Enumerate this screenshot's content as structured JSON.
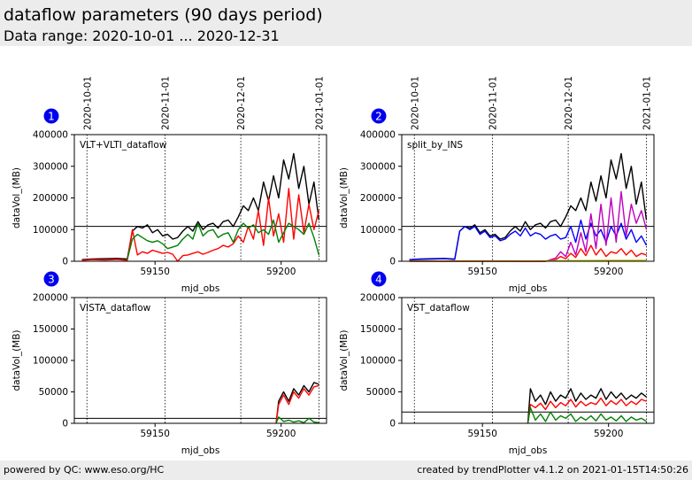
{
  "header": {
    "title": "dataflow parameters (90 days period)",
    "subtitle": "Data range: 2020-10-01 ... 2020-12-31"
  },
  "footer": {
    "left": "powered by QC: www.eso.org/HC",
    "right": "created by trendPlotter v4.1.2 on 2021-01-15T14:50:26"
  },
  "colors": {
    "black": "#000000",
    "red": "#ff0000",
    "green": "#008000",
    "blue": "#0000ff",
    "magenta": "#bf00bf",
    "yellow": "#c0c000",
    "badge": "#0000ee"
  },
  "chart_data": [
    {
      "type": "line",
      "panel": "1",
      "label": "VLT+VLTI_dataflow",
      "xlabel": "mjd_obs",
      "ylabel": "dataVol_(MB)",
      "xlim": [
        59118,
        59218
      ],
      "ylim": [
        0,
        400000
      ],
      "xticks": [
        59150,
        59200
      ],
      "yticks": [
        0,
        100000,
        200000,
        300000,
        400000
      ],
      "date_markers": [
        {
          "label": "2020-10-01",
          "x": 59123
        },
        {
          "label": "2020-11-01",
          "x": 59154
        },
        {
          "label": "2020-12-01",
          "x": 59184
        },
        {
          "label": "2021-01-01",
          "x": 59215
        }
      ],
      "reference_line": 110000,
      "series": [
        {
          "color": "black",
          "x": [
            59121,
            59125,
            59130,
            59135,
            59139,
            59141,
            59143,
            59145,
            59147,
            59149,
            59151,
            59153,
            59155,
            59157,
            59159,
            59161,
            59163,
            59165,
            59167,
            59169,
            59171,
            59173,
            59175,
            59177,
            59179,
            59181,
            59183,
            59185,
            59187,
            59189,
            59191,
            59193,
            59195,
            59197,
            59199,
            59201,
            59203,
            59205,
            59207,
            59209,
            59211,
            59213,
            59215
          ],
          "y": [
            5000,
            7000,
            8000,
            9000,
            7000,
            95000,
            110000,
            105000,
            115000,
            90000,
            100000,
            80000,
            85000,
            70000,
            75000,
            95000,
            110000,
            95000,
            125000,
            100000,
            115000,
            120000,
            105000,
            125000,
            130000,
            110000,
            140000,
            175000,
            160000,
            200000,
            160000,
            250000,
            190000,
            270000,
            200000,
            320000,
            260000,
            340000,
            230000,
            300000,
            180000,
            250000,
            130000
          ]
        },
        {
          "color": "red",
          "x": [
            59121,
            59125,
            59130,
            59135,
            59139,
            59141,
            59143,
            59145,
            59147,
            59149,
            59151,
            59153,
            59155,
            59157,
            59159,
            59161,
            59163,
            59165,
            59167,
            59169,
            59171,
            59173,
            59175,
            59177,
            59179,
            59181,
            59183,
            59185,
            59187,
            59189,
            59191,
            59193,
            59195,
            59197,
            59199,
            59201,
            59203,
            59205,
            59207,
            59209,
            59211,
            59213,
            59215
          ],
          "y": [
            3000,
            5000,
            4000,
            6000,
            3000,
            100000,
            20000,
            30000,
            25000,
            35000,
            30000,
            25000,
            28000,
            22000,
            0,
            18000,
            20000,
            25000,
            30000,
            22000,
            28000,
            35000,
            40000,
            50000,
            45000,
            55000,
            80000,
            60000,
            110000,
            70000,
            160000,
            50000,
            200000,
            80000,
            150000,
            60000,
            230000,
            70000,
            210000,
            90000,
            180000,
            100000,
            160000
          ]
        },
        {
          "color": "green",
          "x": [
            59139,
            59141,
            59143,
            59145,
            59147,
            59149,
            59151,
            59153,
            59155,
            59157,
            59159,
            59161,
            59163,
            59165,
            59167,
            59169,
            59171,
            59173,
            59175,
            59177,
            59179,
            59181,
            59183,
            59185,
            59187,
            59189,
            59191,
            59193,
            59195,
            59197,
            59199,
            59201,
            59203,
            59205,
            59207,
            59209,
            59211,
            59213,
            59215
          ],
          "y": [
            5000,
            70000,
            85000,
            75000,
            65000,
            60000,
            65000,
            55000,
            40000,
            45000,
            50000,
            70000,
            85000,
            70000,
            120000,
            80000,
            95000,
            100000,
            75000,
            85000,
            90000,
            60000,
            100000,
            120000,
            105000,
            115000,
            90000,
            100000,
            85000,
            130000,
            60000,
            90000,
            120000,
            110000,
            100000,
            85000,
            120000,
            75000,
            20000
          ]
        }
      ]
    },
    {
      "type": "line",
      "panel": "2",
      "label": "split_by_INS",
      "xlabel": "mjd_obs",
      "ylabel": "dataVol_(MB)",
      "xlim": [
        59118,
        59218
      ],
      "ylim": [
        0,
        400000
      ],
      "xticks": [
        59150,
        59200
      ],
      "yticks": [
        0,
        100000,
        200000,
        300000,
        400000
      ],
      "date_markers": [
        {
          "label": "2020-10-01",
          "x": 59123
        },
        {
          "label": "2020-11-01",
          "x": 59154
        },
        {
          "label": "2020-12-01",
          "x": 59184
        },
        {
          "label": "2021-01-01",
          "x": 59215
        }
      ],
      "reference_line": 110000,
      "series": [
        {
          "color": "black",
          "x": [
            59121,
            59125,
            59130,
            59135,
            59139,
            59141,
            59143,
            59145,
            59147,
            59149,
            59151,
            59153,
            59155,
            59157,
            59159,
            59161,
            59163,
            59165,
            59167,
            59169,
            59171,
            59173,
            59175,
            59177,
            59179,
            59181,
            59183,
            59185,
            59187,
            59189,
            59191,
            59193,
            59195,
            59197,
            59199,
            59201,
            59203,
            59205,
            59207,
            59209,
            59211,
            59213,
            59215
          ],
          "y": [
            5000,
            7000,
            8000,
            9000,
            7000,
            95000,
            110000,
            105000,
            115000,
            90000,
            100000,
            80000,
            85000,
            70000,
            75000,
            95000,
            110000,
            95000,
            125000,
            100000,
            115000,
            120000,
            105000,
            125000,
            130000,
            110000,
            140000,
            175000,
            160000,
            200000,
            160000,
            250000,
            190000,
            270000,
            200000,
            320000,
            260000,
            340000,
            230000,
            300000,
            180000,
            250000,
            130000
          ]
        },
        {
          "color": "blue",
          "x": [
            59121,
            59125,
            59130,
            59135,
            59139,
            59141,
            59143,
            59145,
            59147,
            59149,
            59151,
            59153,
            59155,
            59157,
            59159,
            59161,
            59163,
            59165,
            59167,
            59169,
            59171,
            59173,
            59175,
            59177,
            59179,
            59181,
            59183,
            59185,
            59187,
            59189,
            59191,
            59193,
            59195,
            59197,
            59199,
            59201,
            59203,
            59205,
            59207,
            59209,
            59211,
            59213,
            59215
          ],
          "y": [
            5000,
            6000,
            7000,
            8000,
            6000,
            95000,
            110000,
            100000,
            110000,
            85000,
            95000,
            75000,
            80000,
            65000,
            70000,
            85000,
            95000,
            80000,
            105000,
            80000,
            90000,
            85000,
            70000,
            80000,
            85000,
            70000,
            75000,
            110000,
            60000,
            130000,
            70000,
            120000,
            80000,
            100000,
            60000,
            110000,
            80000,
            120000,
            70000,
            100000,
            60000,
            80000,
            50000
          ]
        },
        {
          "color": "magenta",
          "x": [
            59121,
            59140,
            59160,
            59175,
            59179,
            59181,
            59183,
            59185,
            59187,
            59189,
            59191,
            59193,
            59195,
            59197,
            59199,
            59201,
            59203,
            59205,
            59207,
            59209,
            59211,
            59213,
            59215
          ],
          "y": [
            0,
            0,
            0,
            0,
            10000,
            30000,
            15000,
            60000,
            20000,
            90000,
            30000,
            150000,
            40000,
            180000,
            50000,
            200000,
            60000,
            220000,
            80000,
            180000,
            120000,
            160000,
            100000
          ]
        },
        {
          "color": "red",
          "x": [
            59121,
            59140,
            59160,
            59175,
            59179,
            59181,
            59183,
            59185,
            59187,
            59189,
            59191,
            59193,
            59195,
            59197,
            59199,
            59201,
            59203,
            59205,
            59207,
            59209,
            59211,
            59213,
            59215
          ],
          "y": [
            0,
            0,
            0,
            0,
            5000,
            15000,
            8000,
            25000,
            12000,
            40000,
            18000,
            50000,
            20000,
            40000,
            15000,
            30000,
            25000,
            40000,
            20000,
            35000,
            15000,
            25000,
            20000
          ]
        },
        {
          "color": "yellow",
          "x": [
            59121,
            59160,
            59180,
            59200,
            59215
          ],
          "y": [
            0,
            0,
            2000,
            3000,
            3000
          ]
        }
      ]
    },
    {
      "type": "line",
      "panel": "3",
      "label": "VISTA_dataflow",
      "xlabel": "mjd_obs",
      "ylabel": "dataVol_(MB)",
      "xlim": [
        59118,
        59218
      ],
      "ylim": [
        0,
        200000
      ],
      "xticks": [
        59150,
        59200
      ],
      "yticks": [
        0,
        50000,
        100000,
        150000,
        200000
      ],
      "date_markers": [
        {
          "x": 59123
        },
        {
          "x": 59154
        },
        {
          "x": 59184
        },
        {
          "x": 59215
        }
      ],
      "reference_line": 8000,
      "series": [
        {
          "color": "black",
          "x": [
            59198,
            59199,
            59201,
            59203,
            59205,
            59207,
            59209,
            59211,
            59213,
            59215
          ],
          "y": [
            0,
            35000,
            50000,
            35000,
            55000,
            45000,
            60000,
            50000,
            65000,
            62000
          ]
        },
        {
          "color": "red",
          "x": [
            59198,
            59199,
            59201,
            59203,
            59205,
            59207,
            59209,
            59211,
            59213,
            59215
          ],
          "y": [
            0,
            30000,
            45000,
            30000,
            50000,
            40000,
            55000,
            45000,
            58000,
            60000
          ]
        },
        {
          "color": "green",
          "x": [
            59198,
            59199,
            59201,
            59203,
            59205,
            59207,
            59209,
            59211,
            59213,
            59215
          ],
          "y": [
            0,
            10000,
            3000,
            5000,
            2000,
            4000,
            1000,
            8000,
            2000,
            1000
          ]
        }
      ]
    },
    {
      "type": "line",
      "panel": "4",
      "label": "VST_dataflow",
      "xlabel": "mjd_obs",
      "ylabel": "dataVol_(MB)",
      "xlim": [
        59118,
        59218
      ],
      "ylim": [
        0,
        200000
      ],
      "xticks": [
        59150,
        59200
      ],
      "yticks": [
        0,
        50000,
        100000,
        150000,
        200000
      ],
      "date_markers": [
        {
          "x": 59123
        },
        {
          "x": 59154
        },
        {
          "x": 59184
        },
        {
          "x": 59215
        }
      ],
      "reference_line": 18000,
      "series": [
        {
          "color": "black",
          "x": [
            59168,
            59169,
            59171,
            59173,
            59175,
            59177,
            59179,
            59181,
            59183,
            59185,
            59187,
            59189,
            59191,
            59193,
            59195,
            59197,
            59199,
            59201,
            59203,
            59205,
            59207,
            59209,
            59211,
            59213,
            59215
          ],
          "y": [
            0,
            55000,
            35000,
            45000,
            30000,
            50000,
            35000,
            45000,
            40000,
            55000,
            35000,
            48000,
            38000,
            45000,
            40000,
            55000,
            38000,
            50000,
            40000,
            48000,
            38000,
            45000,
            40000,
            48000,
            42000
          ]
        },
        {
          "color": "red",
          "x": [
            59168,
            59169,
            59171,
            59173,
            59175,
            59177,
            59179,
            59181,
            59183,
            59185,
            59187,
            59189,
            59191,
            59193,
            59195,
            59197,
            59199,
            59201,
            59203,
            59205,
            59207,
            59209,
            59211,
            59213,
            59215
          ],
          "y": [
            0,
            30000,
            25000,
            32000,
            22000,
            35000,
            25000,
            33000,
            28000,
            38000,
            26000,
            35000,
            28000,
            33000,
            30000,
            40000,
            28000,
            36000,
            30000,
            38000,
            28000,
            35000,
            30000,
            38000,
            35000
          ]
        },
        {
          "color": "green",
          "x": [
            59168,
            59169,
            59171,
            59173,
            59175,
            59177,
            59179,
            59181,
            59183,
            59185,
            59187,
            59189,
            59191,
            59193,
            59195,
            59197,
            59199,
            59201,
            59203,
            59205,
            59207,
            59209,
            59211,
            59213,
            59215
          ],
          "y": [
            0,
            25000,
            5000,
            15000,
            3000,
            18000,
            5000,
            12000,
            8000,
            15000,
            3000,
            10000,
            5000,
            12000,
            4000,
            15000,
            5000,
            10000,
            4000,
            12000,
            3000,
            10000,
            5000,
            8000,
            3000
          ]
        }
      ]
    }
  ]
}
